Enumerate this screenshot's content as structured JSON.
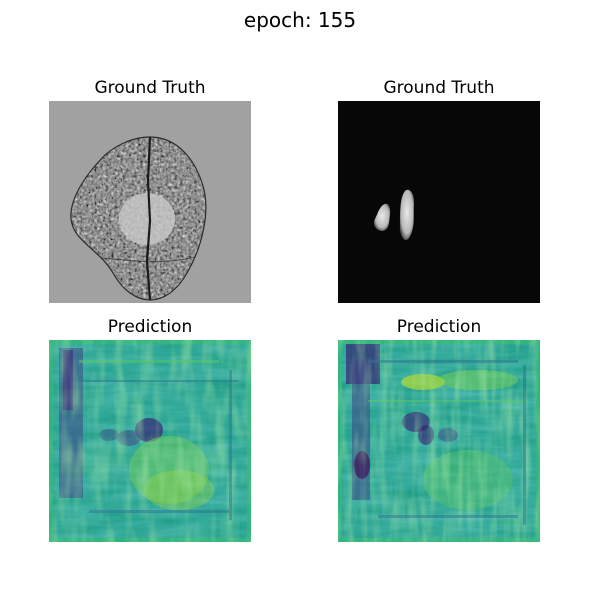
{
  "figure": {
    "suptitle": "epoch: 155",
    "panels": [
      {
        "title": "Ground Truth",
        "content": "brain MRI slice (grayscale)"
      },
      {
        "title": "Ground Truth",
        "content": "segmentation mask on black"
      },
      {
        "title": "Prediction",
        "content": "viridis prediction map"
      },
      {
        "title": "Prediction",
        "content": "viridis prediction map"
      }
    ]
  },
  "colors": {
    "background": "#ffffff",
    "mri_background": "#a1a1a1",
    "mask_background": "#070707",
    "viridis_dark": "#440154",
    "viridis_mid": "#21918c",
    "viridis_light": "#5ec962",
    "viridis_yellow": "#fde725"
  }
}
